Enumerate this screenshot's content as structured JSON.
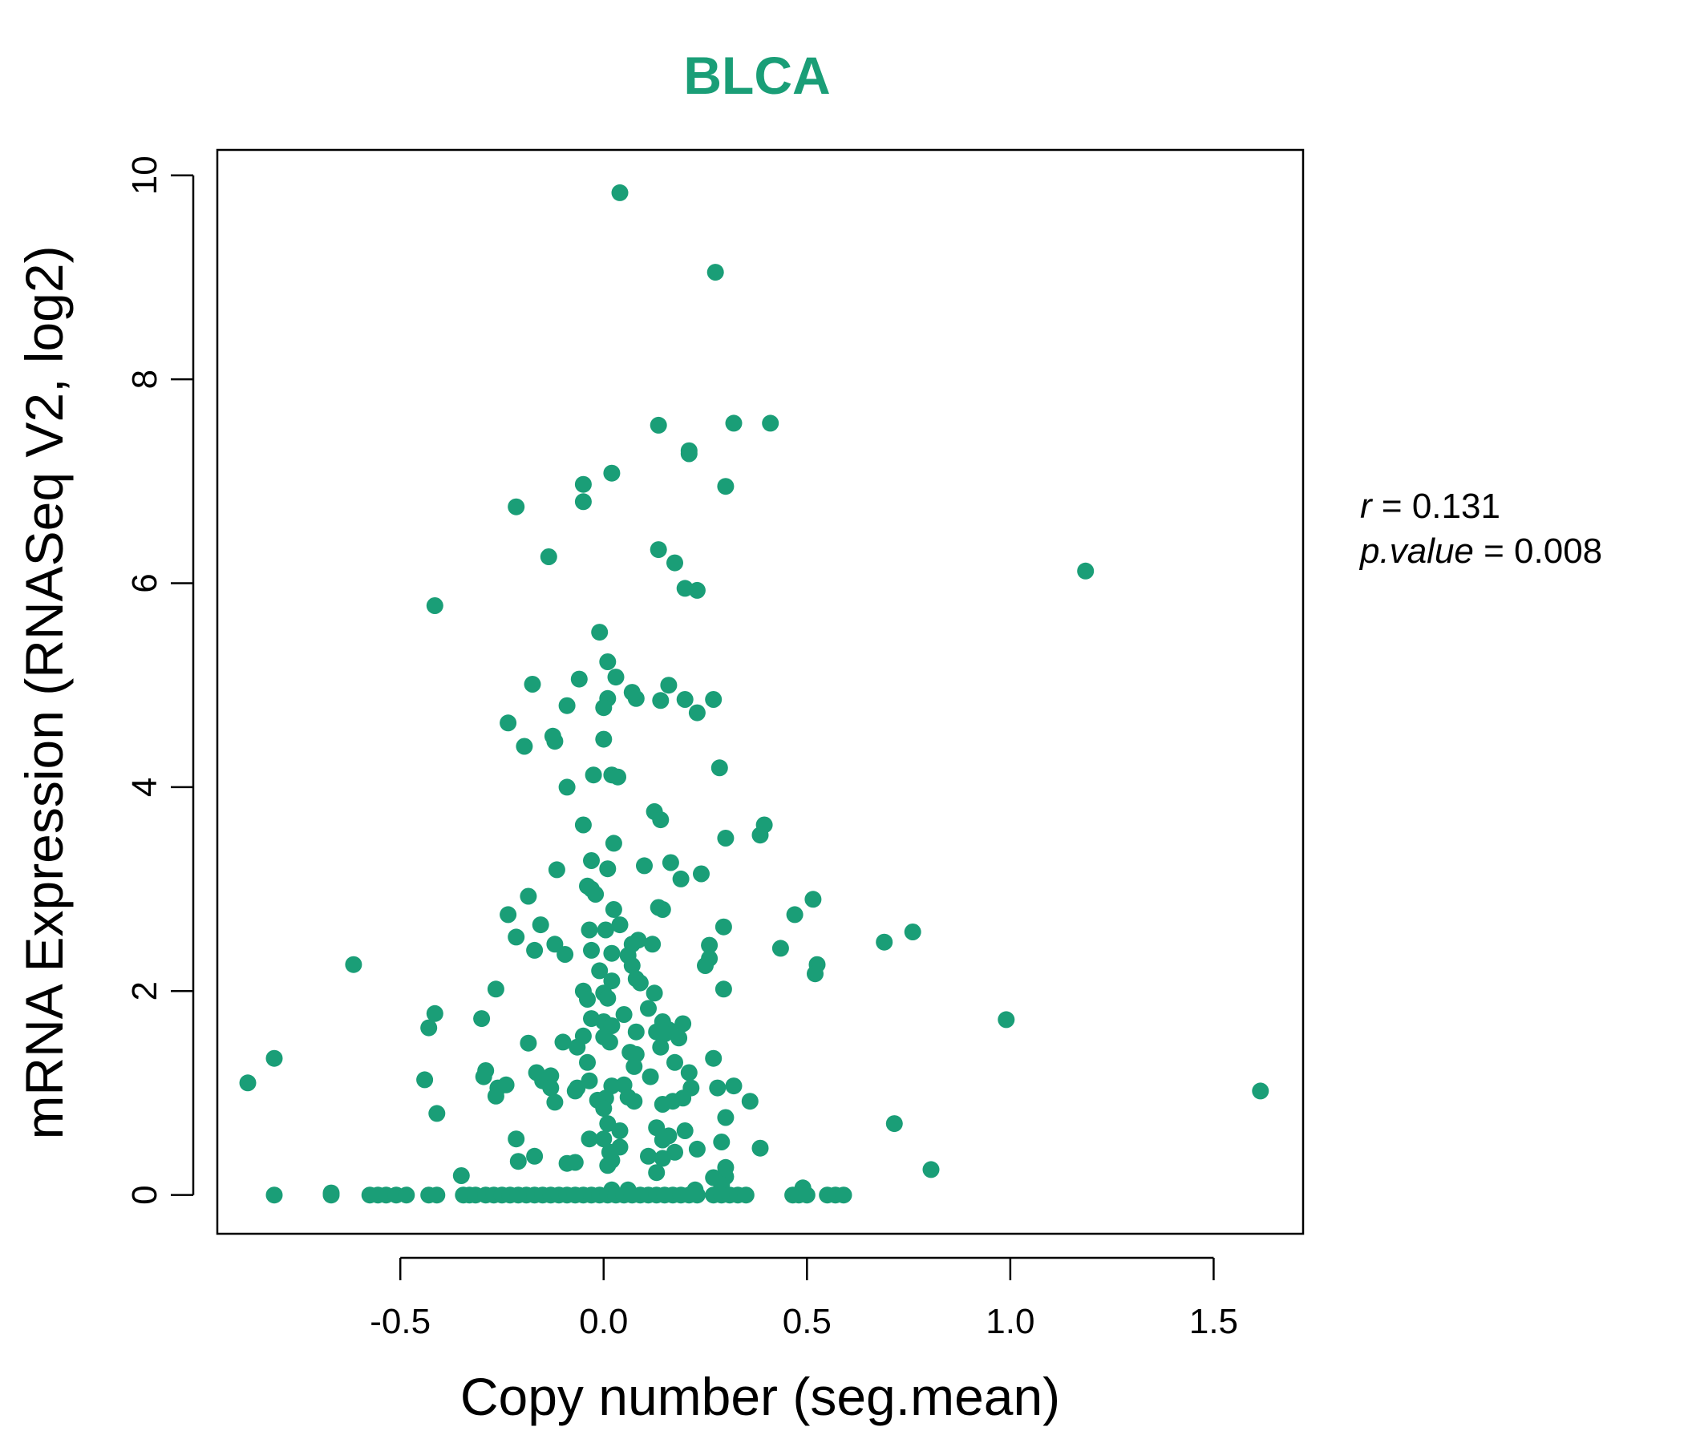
{
  "chart_data": {
    "type": "scatter",
    "title": "BLCA",
    "xlabel": "Copy number (seg.mean)",
    "ylabel": "mRNA Expression (RNASeq V2, log2)",
    "xlim": [
      -0.95,
      1.72
    ],
    "ylim": [
      -0.38,
      10.25
    ],
    "xticks": [
      -0.5,
      0.0,
      0.5,
      1.0,
      1.5
    ],
    "xtick_labels": [
      "-0.5",
      "0.0",
      "0.5",
      "1.0",
      "1.5"
    ],
    "yticks": [
      0,
      2,
      4,
      6,
      8,
      10
    ],
    "ytick_labels": [
      "0",
      "2",
      "4",
      "6",
      "8",
      "10"
    ],
    "grid": false,
    "legend": "none",
    "point_color": "#1a9e77",
    "title_color": "#1a9e77",
    "annotation": {
      "r_label": "r",
      "r_value": "0.131",
      "p_label": "p.value",
      "p_value": "0.008"
    },
    "points": [
      [
        0.04,
        9.83
      ],
      [
        0.275,
        9.05
      ],
      [
        0.135,
        7.55
      ],
      [
        0.32,
        7.57
      ],
      [
        0.41,
        7.57
      ],
      [
        0.21,
        7.3
      ],
      [
        0.21,
        7.27
      ],
      [
        0.02,
        7.08
      ],
      [
        -0.05,
        6.97
      ],
      [
        -0.05,
        6.8
      ],
      [
        0.3,
        6.95
      ],
      [
        -0.215,
        6.75
      ],
      [
        -0.135,
        6.26
      ],
      [
        0.135,
        6.33
      ],
      [
        0.175,
        6.2
      ],
      [
        0.2,
        5.95
      ],
      [
        0.23,
        5.93
      ],
      [
        1.185,
        6.12
      ],
      [
        -0.415,
        5.78
      ],
      [
        -0.01,
        5.52
      ],
      [
        0.01,
        5.23
      ],
      [
        0.03,
        5.08
      ],
      [
        -0.06,
        5.06
      ],
      [
        -0.175,
        5.01
      ],
      [
        0.16,
        5.0
      ],
      [
        0.07,
        4.93
      ],
      [
        0.08,
        4.87
      ],
      [
        0.01,
        4.87
      ],
      [
        0.0,
        4.78
      ],
      [
        0.14,
        4.85
      ],
      [
        0.2,
        4.86
      ],
      [
        0.27,
        4.86
      ],
      [
        0.23,
        4.73
      ],
      [
        -0.09,
        4.8
      ],
      [
        -0.235,
        4.63
      ],
      [
        -0.125,
        4.5
      ],
      [
        -0.12,
        4.45
      ],
      [
        -0.195,
        4.4
      ],
      [
        0.0,
        4.47
      ],
      [
        0.285,
        4.19
      ],
      [
        -0.025,
        4.12
      ],
      [
        0.02,
        4.12
      ],
      [
        0.035,
        4.1
      ],
      [
        -0.09,
        4.0
      ],
      [
        0.125,
        3.76
      ],
      [
        0.14,
        3.68
      ],
      [
        0.395,
        3.63
      ],
      [
        0.385,
        3.53
      ],
      [
        -0.05,
        3.63
      ],
      [
        0.3,
        3.5
      ],
      [
        0.025,
        3.45
      ],
      [
        -0.03,
        3.28
      ],
      [
        0.01,
        3.2
      ],
      [
        0.165,
        3.26
      ],
      [
        0.1,
        3.23
      ],
      [
        -0.115,
        3.19
      ],
      [
        0.24,
        3.15
      ],
      [
        0.19,
        3.1
      ],
      [
        -0.04,
        3.03
      ],
      [
        -0.03,
        3.0
      ],
      [
        -0.02,
        2.95
      ],
      [
        0.515,
        2.9
      ],
      [
        -0.185,
        2.93
      ],
      [
        0.135,
        2.82
      ],
      [
        0.145,
        2.8
      ],
      [
        0.025,
        2.8
      ],
      [
        0.47,
        2.75
      ],
      [
        -0.235,
        2.75
      ],
      [
        -0.155,
        2.65
      ],
      [
        0.04,
        2.65
      ],
      [
        0.295,
        2.63
      ],
      [
        -0.035,
        2.6
      ],
      [
        0.005,
        2.6
      ],
      [
        0.76,
        2.58
      ],
      [
        -0.215,
        2.53
      ],
      [
        0.085,
        2.5
      ],
      [
        0.07,
        2.46
      ],
      [
        0.69,
        2.48
      ],
      [
        0.12,
        2.46
      ],
      [
        -0.12,
        2.46
      ],
      [
        0.26,
        2.45
      ],
      [
        0.435,
        2.42
      ],
      [
        -0.17,
        2.4
      ],
      [
        -0.03,
        2.4
      ],
      [
        0.02,
        2.37
      ],
      [
        0.06,
        2.35
      ],
      [
        -0.095,
        2.36
      ],
      [
        0.26,
        2.32
      ],
      [
        0.25,
        2.25
      ],
      [
        -0.615,
        2.26
      ],
      [
        0.525,
        2.26
      ],
      [
        0.52,
        2.17
      ],
      [
        0.07,
        2.25
      ],
      [
        -0.01,
        2.2
      ],
      [
        0.08,
        2.12
      ],
      [
        0.09,
        2.08
      ],
      [
        0.02,
        2.1
      ],
      [
        0.295,
        2.02
      ],
      [
        -0.265,
        2.02
      ],
      [
        -0.05,
        2.0
      ],
      [
        0.0,
        1.98
      ],
      [
        0.125,
        1.98
      ],
      [
        0.01,
        1.93
      ],
      [
        -0.04,
        1.92
      ],
      [
        0.11,
        1.83
      ],
      [
        -0.415,
        1.78
      ],
      [
        0.05,
        1.77
      ],
      [
        -0.3,
        1.73
      ],
      [
        -0.03,
        1.73
      ],
      [
        0.0,
        1.7
      ],
      [
        0.145,
        1.7
      ],
      [
        0.195,
        1.68
      ],
      [
        0.02,
        1.66
      ],
      [
        -0.43,
        1.64
      ],
      [
        0.16,
        1.62
      ],
      [
        0.08,
        1.6
      ],
      [
        0.13,
        1.6
      ],
      [
        0.15,
        1.58
      ],
      [
        -0.05,
        1.56
      ],
      [
        0.0,
        1.55
      ],
      [
        0.185,
        1.54
      ],
      [
        0.015,
        1.5
      ],
      [
        -0.185,
        1.49
      ],
      [
        -0.1,
        1.5
      ],
      [
        -0.065,
        1.45
      ],
      [
        0.14,
        1.45
      ],
      [
        0.065,
        1.4
      ],
      [
        0.08,
        1.38
      ],
      [
        0.99,
        1.72
      ],
      [
        -0.81,
        1.34
      ],
      [
        0.27,
        1.34
      ],
      [
        -0.04,
        1.3
      ],
      [
        0.175,
        1.3
      ],
      [
        0.075,
        1.26
      ],
      [
        -0.29,
        1.22
      ],
      [
        0.21,
        1.2
      ],
      [
        -0.295,
        1.16
      ],
      [
        -0.165,
        1.2
      ],
      [
        -0.13,
        1.17
      ],
      [
        -0.44,
        1.13
      ],
      [
        -0.15,
        1.12
      ],
      [
        0.115,
        1.16
      ],
      [
        -0.035,
        1.12
      ],
      [
        -0.875,
        1.1
      ],
      [
        -0.24,
        1.08
      ],
      [
        0.05,
        1.08
      ],
      [
        -0.26,
        1.05
      ],
      [
        0.02,
        1.07
      ],
      [
        -0.065,
        1.05
      ],
      [
        -0.13,
        1.05
      ],
      [
        0.28,
        1.05
      ],
      [
        0.32,
        1.07
      ],
      [
        0.215,
        1.05
      ],
      [
        -0.07,
        1.02
      ],
      [
        0.195,
        0.95
      ],
      [
        1.615,
        1.02
      ],
      [
        -0.265,
        0.97
      ],
      [
        0.005,
        0.95
      ],
      [
        0.06,
        0.96
      ],
      [
        -0.015,
        0.93
      ],
      [
        0.17,
        0.92
      ],
      [
        0.145,
        0.89
      ],
      [
        0.075,
        0.92
      ],
      [
        0.36,
        0.92
      ],
      [
        -0.12,
        0.91
      ],
      [
        0.0,
        0.85
      ],
      [
        -0.41,
        0.8
      ],
      [
        0.3,
        0.76
      ],
      [
        0.715,
        0.7
      ],
      [
        0.01,
        0.7
      ],
      [
        0.13,
        0.66
      ],
      [
        0.04,
        0.63
      ],
      [
        0.2,
        0.63
      ],
      [
        0.16,
        0.58
      ],
      [
        -0.035,
        0.55
      ],
      [
        0.0,
        0.55
      ],
      [
        0.145,
        0.54
      ],
      [
        -0.215,
        0.55
      ],
      [
        0.29,
        0.52
      ],
      [
        0.04,
        0.47
      ],
      [
        0.385,
        0.46
      ],
      [
        0.23,
        0.45
      ],
      [
        0.175,
        0.42
      ],
      [
        0.015,
        0.42
      ],
      [
        0.11,
        0.38
      ],
      [
        -0.17,
        0.38
      ],
      [
        0.145,
        0.36
      ],
      [
        -0.21,
        0.33
      ],
      [
        0.02,
        0.34
      ],
      [
        -0.09,
        0.31
      ],
      [
        -0.07,
        0.32
      ],
      [
        0.01,
        0.29
      ],
      [
        0.3,
        0.27
      ],
      [
        0.805,
        0.25
      ],
      [
        0.13,
        0.22
      ],
      [
        0.3,
        0.18
      ],
      [
        -0.35,
        0.19
      ],
      [
        0.27,
        0.17
      ],
      [
        0.29,
        0.1
      ],
      [
        0.49,
        0.07
      ],
      [
        0.02,
        0.05
      ],
      [
        0.06,
        0.05
      ],
      [
        0.225,
        0.05
      ],
      [
        -0.67,
        0.02
      ],
      [
        -0.81,
        0.0
      ],
      [
        -0.67,
        0.0
      ],
      [
        -0.575,
        0.0
      ],
      [
        -0.555,
        0.0
      ],
      [
        -0.535,
        0.0
      ],
      [
        -0.51,
        0.0
      ],
      [
        -0.485,
        0.0
      ],
      [
        -0.43,
        0.0
      ],
      [
        -0.41,
        0.0
      ],
      [
        -0.345,
        0.0
      ],
      [
        -0.33,
        0.0
      ],
      [
        -0.315,
        0.0
      ],
      [
        -0.29,
        0.0
      ],
      [
        -0.27,
        0.0
      ],
      [
        -0.25,
        0.0
      ],
      [
        -0.23,
        0.0
      ],
      [
        -0.21,
        0.0
      ],
      [
        -0.19,
        0.0
      ],
      [
        -0.17,
        0.0
      ],
      [
        -0.15,
        0.0
      ],
      [
        -0.13,
        0.0
      ],
      [
        -0.11,
        0.0
      ],
      [
        -0.09,
        0.0
      ],
      [
        -0.07,
        0.0
      ],
      [
        -0.05,
        0.0
      ],
      [
        -0.03,
        0.0
      ],
      [
        -0.01,
        0.0
      ],
      [
        0.01,
        0.0
      ],
      [
        0.03,
        0.0
      ],
      [
        0.05,
        0.0
      ],
      [
        0.07,
        0.0
      ],
      [
        0.09,
        0.0
      ],
      [
        0.11,
        0.0
      ],
      [
        0.13,
        0.0
      ],
      [
        0.15,
        0.0
      ],
      [
        0.17,
        0.0
      ],
      [
        0.19,
        0.0
      ],
      [
        0.21,
        0.0
      ],
      [
        0.23,
        0.0
      ],
      [
        0.27,
        0.0
      ],
      [
        0.29,
        0.0
      ],
      [
        0.31,
        0.0
      ],
      [
        0.33,
        0.0
      ],
      [
        0.35,
        0.0
      ],
      [
        0.465,
        0.0
      ],
      [
        0.48,
        0.0
      ],
      [
        0.5,
        0.0
      ],
      [
        0.55,
        0.0
      ],
      [
        0.57,
        0.0
      ],
      [
        0.59,
        0.0
      ]
    ]
  }
}
